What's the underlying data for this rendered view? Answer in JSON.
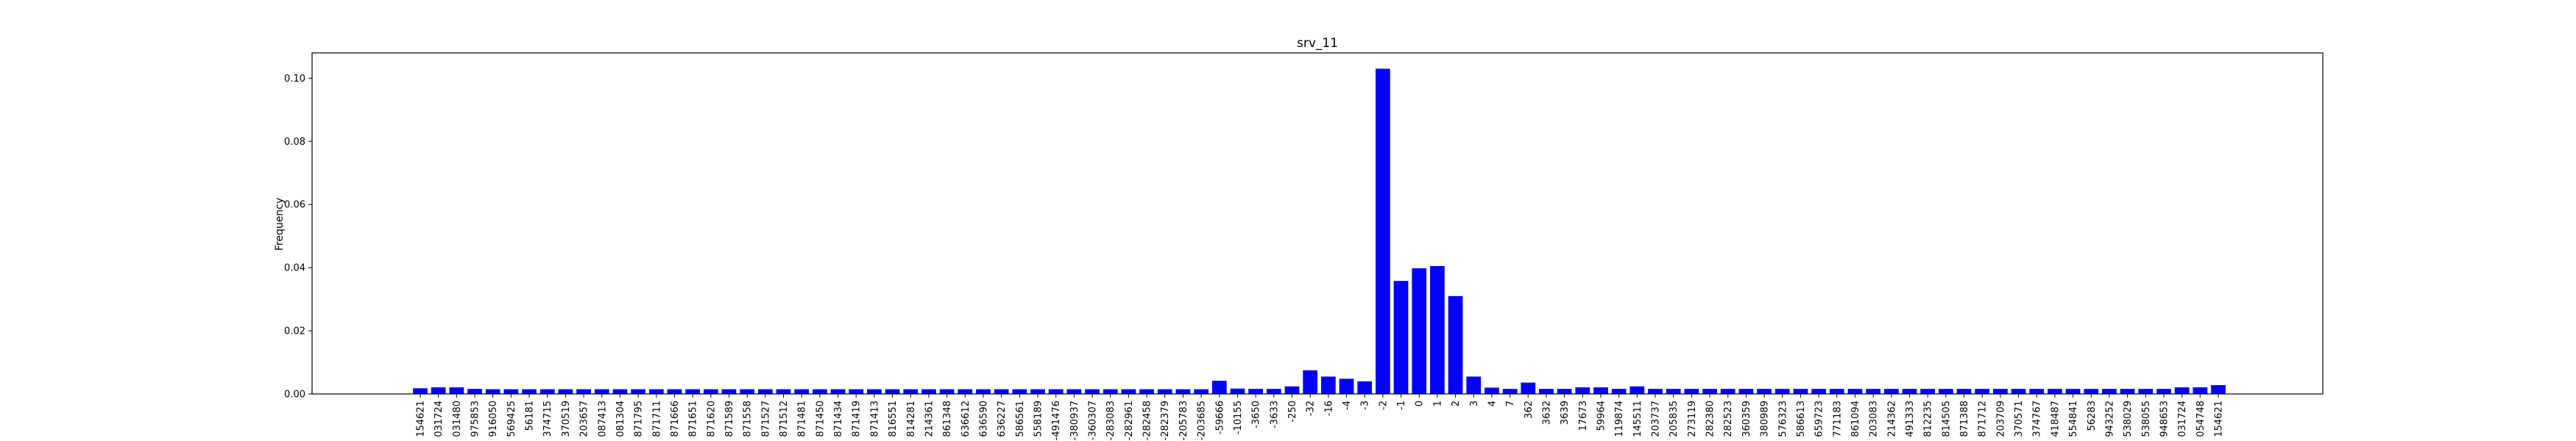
{
  "chart_data": {
    "type": "bar",
    "title": "srv_11",
    "xlabel": "",
    "ylabel": "Frequency",
    "ylim": [
      0,
      0.108
    ],
    "yticks": [
      "0.00",
      "0.02",
      "0.04",
      "0.06",
      "0.08",
      "0.10"
    ],
    "ytick_values": [
      0,
      0.02,
      0.04,
      0.06,
      0.08,
      0.1
    ],
    "grid": false,
    "bar_color": "#0000ff",
    "categories": [
      "154621",
      "031724",
      "031480",
      "975853",
      "916050",
      "569425",
      "56181",
      "374715",
      "370519",
      "203657",
      "087413",
      "081304",
      "871795",
      "871711",
      "871666",
      "871651",
      "871620",
      "871589",
      "871558",
      "871527",
      "871512",
      "871481",
      "871450",
      "871434",
      "871419",
      "871413",
      "816551",
      "814281",
      "214361",
      "861348",
      "636612",
      "636590",
      "636227",
      "586561",
      "558189",
      "-491476",
      "-380937",
      "-360307",
      "-283083",
      "-282961",
      "-282458",
      "-282379",
      "-205783",
      "-203685",
      "-59666",
      "-10155",
      "-3650",
      "-3633",
      "-250",
      "-32",
      "-16",
      "-4",
      "-3",
      "-2",
      "-1",
      "0",
      "1",
      "2",
      "3",
      "4",
      "7",
      "362",
      "3632",
      "3639",
      "17673",
      "59964",
      "119874",
      "145511",
      "203737",
      "205835",
      "273119",
      "282380",
      "282523",
      "360359",
      "380989",
      "576323",
      "586613",
      "659723",
      "771183",
      "861094",
      "203083",
      "214362",
      "491333",
      "812235",
      "814505",
      "871388",
      "871712",
      "203709",
      "370571",
      "374767",
      "418487",
      "554841",
      "56283",
      "943252",
      "538029",
      "538055",
      "948653",
      "031724",
      "054748",
      "154621"
    ],
    "values": [
      0.0018,
      0.0021,
      0.0021,
      0.0016,
      0.0015,
      0.0015,
      0.0015,
      0.0015,
      0.0015,
      0.0015,
      0.0015,
      0.0015,
      0.0015,
      0.0015,
      0.0015,
      0.0015,
      0.0015,
      0.0015,
      0.0015,
      0.0015,
      0.0015,
      0.0015,
      0.0015,
      0.0015,
      0.0015,
      0.0015,
      0.0015,
      0.0015,
      0.0015,
      0.0015,
      0.0015,
      0.0015,
      0.0015,
      0.0015,
      0.0015,
      0.0015,
      0.0015,
      0.0015,
      0.0015,
      0.0015,
      0.0015,
      0.0015,
      0.0015,
      0.0015,
      0.0042,
      0.0017,
      0.0016,
      0.0016,
      0.0024,
      0.0075,
      0.0055,
      0.0048,
      0.004,
      0.103,
      0.0358,
      0.0398,
      0.0405,
      0.031,
      0.0055,
      0.002,
      0.0016,
      0.0036,
      0.0016,
      0.0016,
      0.0021,
      0.0021,
      0.0016,
      0.0024,
      0.0016,
      0.0016,
      0.0016,
      0.0016,
      0.0016,
      0.0016,
      0.0016,
      0.0016,
      0.0016,
      0.0016,
      0.0016,
      0.0016,
      0.0016,
      0.0016,
      0.0016,
      0.0016,
      0.0016,
      0.0016,
      0.0016,
      0.0016,
      0.0016,
      0.0016,
      0.0016,
      0.0016,
      0.0016,
      0.0016,
      0.0016,
      0.0016,
      0.0016,
      0.0021,
      0.0021,
      0.0028
    ]
  }
}
